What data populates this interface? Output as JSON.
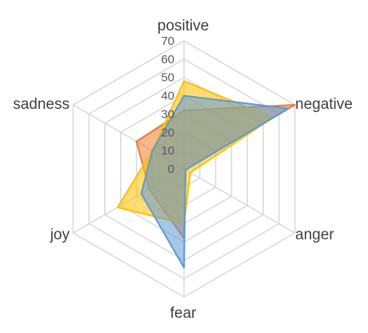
{
  "chart_data": {
    "type": "radar",
    "axes": [
      "positive",
      "negative",
      "anger",
      "fear",
      "joy",
      "sadness"
    ],
    "tick_labels": [
      "0",
      "10",
      "20",
      "30",
      "40",
      "50",
      "60",
      "70"
    ],
    "ylim": [
      0,
      70
    ],
    "grid": true,
    "legend": "none",
    "series": [
      {
        "color": "#ed7d31",
        "values": [
          32,
          70,
          1,
          38,
          22,
          30
        ]
      },
      {
        "color": "#ffc000",
        "values": [
          48,
          56,
          4,
          30,
          42,
          20
        ]
      },
      {
        "color": "#5b9bd5",
        "values": [
          40,
          66,
          1,
          54,
          27,
          20
        ]
      }
    ]
  }
}
